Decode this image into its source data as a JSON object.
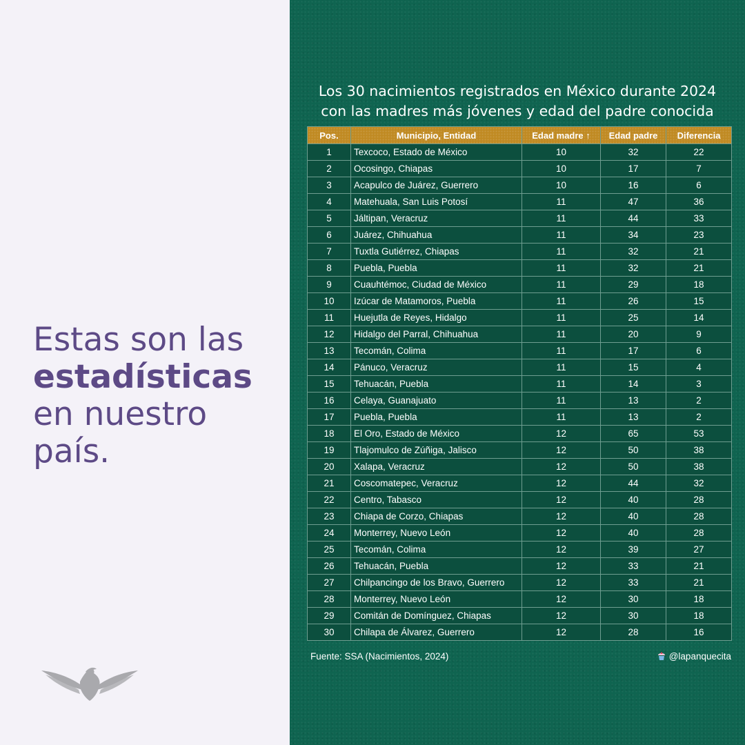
{
  "headline": {
    "line1": "Estas son las",
    "line2": "estadísticas",
    "line3": "en nuestro",
    "line4": "país."
  },
  "table": {
    "title_line1": "Los 30 nacimientos registrados en México durante 2024",
    "title_line2": "con las madres más jóvenes y edad del padre conocida",
    "columns": [
      "Pos.",
      "Municipio, Entidad",
      "Edad madre ↑",
      "Edad padre",
      "Diferencia"
    ],
    "rows": [
      [
        "1",
        "Texcoco, Estado de México",
        "10",
        "32",
        "22"
      ],
      [
        "2",
        "Ocosingo, Chiapas",
        "10",
        "17",
        "7"
      ],
      [
        "3",
        "Acapulco de Juárez, Guerrero",
        "10",
        "16",
        "6"
      ],
      [
        "4",
        "Matehuala, San Luis Potosí",
        "11",
        "47",
        "36"
      ],
      [
        "5",
        "Jáltipan, Veracruz",
        "11",
        "44",
        "33"
      ],
      [
        "6",
        "Juárez, Chihuahua",
        "11",
        "34",
        "23"
      ],
      [
        "7",
        "Tuxtla Gutiérrez, Chiapas",
        "11",
        "32",
        "21"
      ],
      [
        "8",
        "Puebla, Puebla",
        "11",
        "32",
        "21"
      ],
      [
        "9",
        "Cuauhtémoc, Ciudad de México",
        "11",
        "29",
        "18"
      ],
      [
        "10",
        "Izúcar de Matamoros, Puebla",
        "11",
        "26",
        "15"
      ],
      [
        "11",
        "Huejutla de Reyes, Hidalgo",
        "11",
        "25",
        "14"
      ],
      [
        "12",
        "Hidalgo del Parral, Chihuahua",
        "11",
        "20",
        "9"
      ],
      [
        "13",
        "Tecomán, Colima",
        "11",
        "17",
        "6"
      ],
      [
        "14",
        "Pánuco, Veracruz",
        "11",
        "15",
        "4"
      ],
      [
        "15",
        "Tehuacán, Puebla",
        "11",
        "14",
        "3"
      ],
      [
        "16",
        "Celaya, Guanajuato",
        "11",
        "13",
        "2"
      ],
      [
        "17",
        "Puebla, Puebla",
        "11",
        "13",
        "2"
      ],
      [
        "18",
        "El Oro, Estado de México",
        "12",
        "65",
        "53"
      ],
      [
        "19",
        "Tlajomulco de Zúñiga, Jalisco",
        "12",
        "50",
        "38"
      ],
      [
        "20",
        "Xalapa, Veracruz",
        "12",
        "50",
        "38"
      ],
      [
        "21",
        "Coscomatepec, Veracruz",
        "12",
        "44",
        "32"
      ],
      [
        "22",
        "Centro, Tabasco",
        "12",
        "40",
        "28"
      ],
      [
        "23",
        "Chiapa de Corzo, Chiapas",
        "12",
        "40",
        "28"
      ],
      [
        "24",
        "Monterrey, Nuevo León",
        "12",
        "40",
        "28"
      ],
      [
        "25",
        "Tecomán, Colima",
        "12",
        "39",
        "27"
      ],
      [
        "26",
        "Tehuacán, Puebla",
        "12",
        "33",
        "21"
      ],
      [
        "27",
        "Chilpancingo de los Bravo, Guerrero",
        "12",
        "33",
        "21"
      ],
      [
        "28",
        "Monterrey, Nuevo León",
        "12",
        "30",
        "18"
      ],
      [
        "29",
        "Comitán de Domínguez, Chiapas",
        "12",
        "30",
        "18"
      ],
      [
        "30",
        "Chilapa de Álvarez, Guerrero",
        "12",
        "28",
        "16"
      ]
    ]
  },
  "footer": {
    "source": "Fuente: SSA (Nacimientos, 2024)",
    "handle": "@lapanquecita"
  },
  "icons": {
    "logo": "eagle-emblem-icon",
    "handle_icon": "cupcake-icon"
  },
  "colors": {
    "left_bg": "#f4f2f8",
    "headline": "#5d4a86",
    "right_bg": "#0f6450",
    "header_gold": "#c08a22",
    "row_bg": "#0c4f3e"
  }
}
